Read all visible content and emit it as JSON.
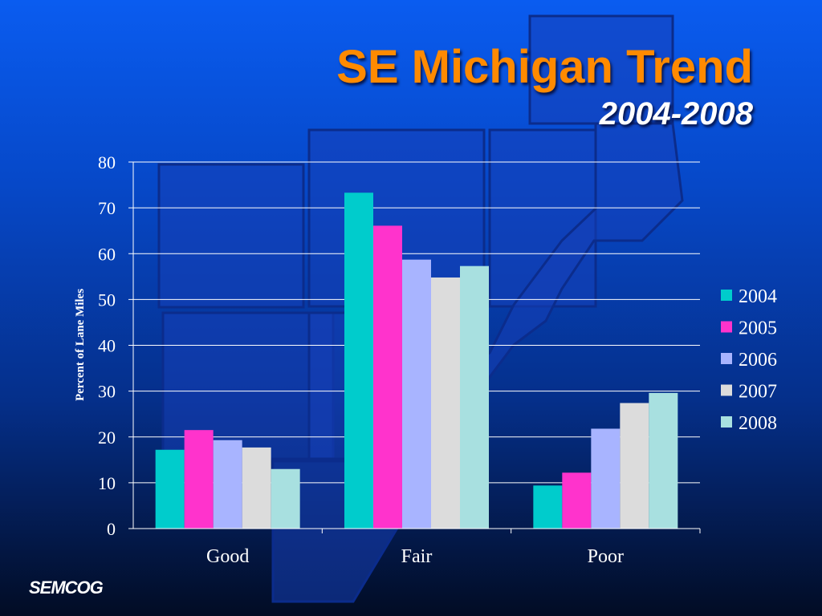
{
  "header": {
    "title": "SE Michigan Trend",
    "subtitle": "2004-2008"
  },
  "footer": {
    "logo": "SEMCOG"
  },
  "chart_data": {
    "type": "bar",
    "categories": [
      "Good",
      "Fair",
      "Poor"
    ],
    "series": [
      {
        "name": "2004",
        "color": "#00cccc",
        "values": [
          17.2,
          73.3,
          9.4
        ]
      },
      {
        "name": "2005",
        "color": "#ff33cc",
        "values": [
          21.5,
          66.1,
          12.2
        ]
      },
      {
        "name": "2006",
        "color": "#a8b4ff",
        "values": [
          19.3,
          58.7,
          21.8
        ]
      },
      {
        "name": "2007",
        "color": "#dcdcdc",
        "values": [
          17.7,
          54.8,
          27.4
        ]
      },
      {
        "name": "2008",
        "color": "#a8e0e0",
        "values": [
          13.0,
          57.3,
          29.6
        ]
      }
    ],
    "xlabel": "",
    "ylabel": "Percent of Lane Miles",
    "ylim": [
      0,
      80
    ],
    "yticks": [
      0,
      10,
      20,
      30,
      40,
      50,
      60,
      70,
      80
    ],
    "grid": true,
    "legend": "right"
  }
}
